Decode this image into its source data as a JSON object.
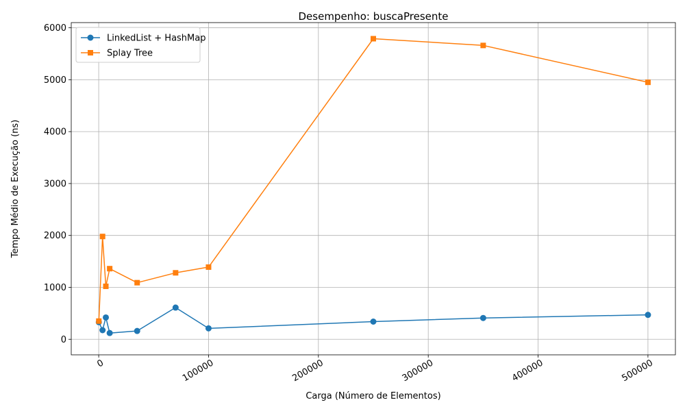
{
  "chart_data": {
    "type": "line",
    "title": "Desempenho: buscaPresente",
    "xlabel": "Carga (Número de Elementos)",
    "ylabel": "Tempo Médio de Execução (ns)",
    "xlim": [
      -25000,
      525000
    ],
    "ylim": [
      -300,
      6100
    ],
    "xticks": [
      0,
      100000,
      200000,
      300000,
      400000,
      500000
    ],
    "yticks": [
      0,
      1000,
      2000,
      3000,
      4000,
      5000,
      6000
    ],
    "grid": true,
    "legend_position": "top-left",
    "series": [
      {
        "name": "LinkedList + HashMap",
        "color": "#1f77b4",
        "marker": "circle",
        "x": [
          100,
          3500,
          6500,
          10000,
          35000,
          70000,
          100000,
          250000,
          350000,
          500000
        ],
        "y": [
          330,
          175,
          420,
          120,
          160,
          610,
          210,
          340,
          410,
          470
        ]
      },
      {
        "name": "Splay Tree",
        "color": "#ff7f0e",
        "marker": "square",
        "x": [
          100,
          3500,
          6500,
          10000,
          35000,
          70000,
          100000,
          250000,
          350000,
          500000
        ],
        "y": [
          350,
          1980,
          1020,
          1360,
          1090,
          1280,
          1390,
          5790,
          5660,
          4950
        ]
      }
    ]
  }
}
